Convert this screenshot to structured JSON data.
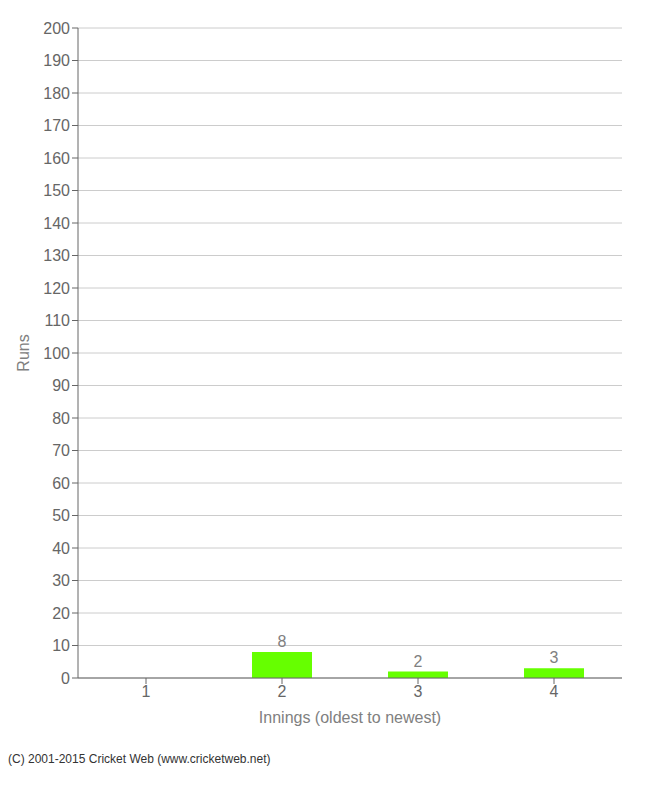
{
  "chart_data": {
    "type": "bar",
    "categories": [
      1,
      2,
      3,
      4
    ],
    "values": [
      0,
      8,
      2,
      3
    ],
    "color": "#66ff00",
    "xlabel": "Innings (oldest to newest)",
    "ylabel": "Runs",
    "ylim": [
      0,
      200
    ],
    "yticks": [
      0,
      10,
      20,
      30,
      40,
      50,
      60,
      70,
      80,
      90,
      100,
      110,
      120,
      130,
      140,
      150,
      160,
      170,
      180,
      190,
      200
    ],
    "grid": true,
    "data_labels": true,
    "annotations": [
      "(C) 2001-2015 Cricket Web (www.cricketweb.net)"
    ]
  }
}
